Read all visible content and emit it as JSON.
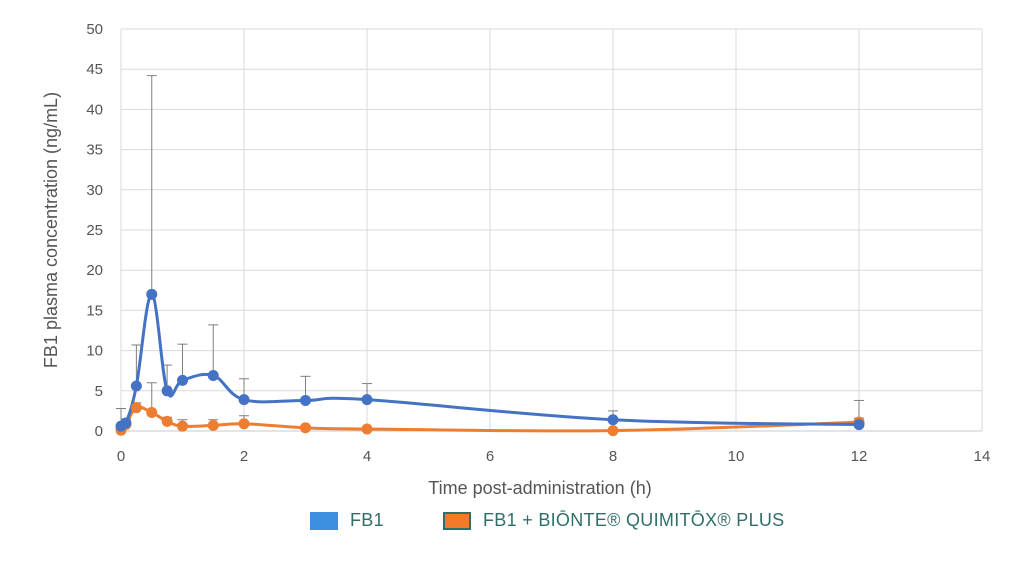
{
  "chart_data": {
    "type": "line",
    "title": "",
    "xlabel": "Time post-administration (h)",
    "ylabel": "FB1 plasma concentration (ng/mL)",
    "xlim": [
      0,
      14
    ],
    "ylim": [
      0,
      50
    ],
    "xticks": [
      0,
      2,
      4,
      6,
      8,
      10,
      12,
      14
    ],
    "yticks": [
      0,
      5,
      10,
      15,
      20,
      25,
      30,
      35,
      40,
      45,
      50
    ],
    "grid": true,
    "legend_position": "bottom",
    "series": [
      {
        "name": "FB1",
        "color": "#4472c4",
        "legend_color": "#3d8fe0",
        "x": [
          0,
          0.08,
          0.25,
          0.5,
          0.75,
          1,
          1.5,
          2,
          3,
          4,
          8,
          12
        ],
        "y": [
          0.6,
          1.0,
          5.6,
          17.0,
          5.0,
          6.3,
          6.9,
          3.9,
          3.8,
          3.9,
          1.4,
          0.8
        ],
        "error_upper": [
          2.8,
          1.5,
          10.7,
          44.2,
          8.2,
          10.8,
          13.2,
          6.5,
          6.8,
          5.9,
          2.5,
          3.8
        ]
      },
      {
        "name": "FB1 + BIŌNTE® QUIMITŌX® PLUS",
        "color": "#ed7d31",
        "legend_color": "#f47a2a",
        "legend_border": "#2f6f6a",
        "x": [
          0,
          0.08,
          0.25,
          0.5,
          0.75,
          1,
          1.5,
          2,
          3,
          4,
          8,
          12
        ],
        "y": [
          0.1,
          0.8,
          2.9,
          2.3,
          1.2,
          0.6,
          0.7,
          0.9,
          0.4,
          0.25,
          0.05,
          1.1
        ],
        "error_upper": [
          0.5,
          1.3,
          3.5,
          6.0,
          1.7,
          1.4,
          1.4,
          1.9,
          0.7,
          0.5,
          0.2,
          1.6
        ]
      }
    ]
  }
}
